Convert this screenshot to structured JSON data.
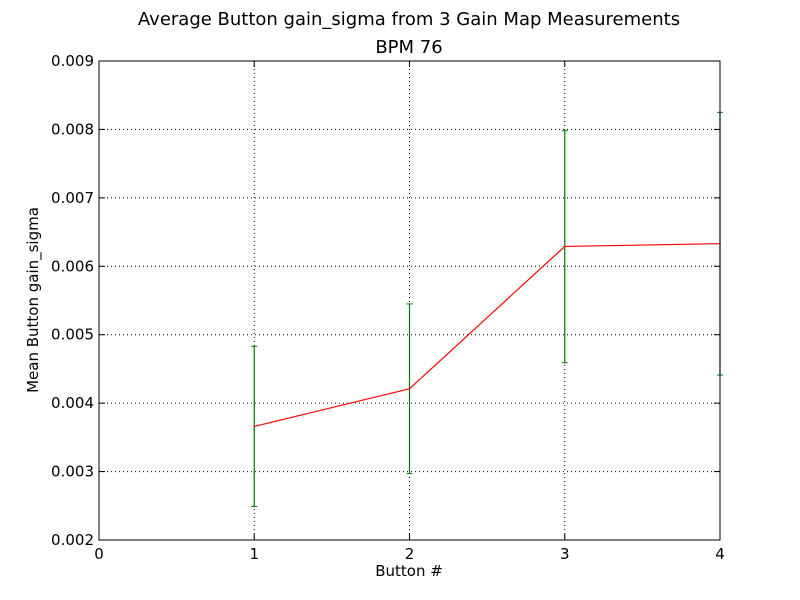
{
  "chart_data": {
    "type": "line",
    "title": "Average Button gain_sigma from 3 Gain Map Measurements",
    "subtitle": "BPM 76",
    "xlabel": "Button #",
    "ylabel": "Mean Button gain_sigma",
    "xlim": [
      0,
      4
    ],
    "ylim": [
      0.002,
      0.009
    ],
    "xticks": [
      0,
      1,
      2,
      3,
      4
    ],
    "yticks": [
      0.002,
      0.003,
      0.004,
      0.005,
      0.006,
      0.007,
      0.008,
      0.009
    ],
    "xtick_labels": [
      "0",
      "1",
      "2",
      "3",
      "4"
    ],
    "ytick_labels": [
      "0.002",
      "0.003",
      "0.004",
      "0.005",
      "0.006",
      "0.007",
      "0.008",
      "0.009"
    ],
    "grid": true,
    "series": [
      {
        "x": [
          1,
          2,
          3,
          4
        ],
        "y": [
          0.00366,
          0.00421,
          0.00629,
          0.00633
        ],
        "yerr_low": [
          0.00249,
          0.00297,
          0.00459,
          0.00441
        ],
        "yerr_high": [
          0.00483,
          0.00545,
          0.00798,
          0.00825
        ]
      }
    ],
    "colors": {
      "line": "#ff0000",
      "errorbar": "#008000",
      "grid": "#000000",
      "axes": "#000000"
    }
  }
}
